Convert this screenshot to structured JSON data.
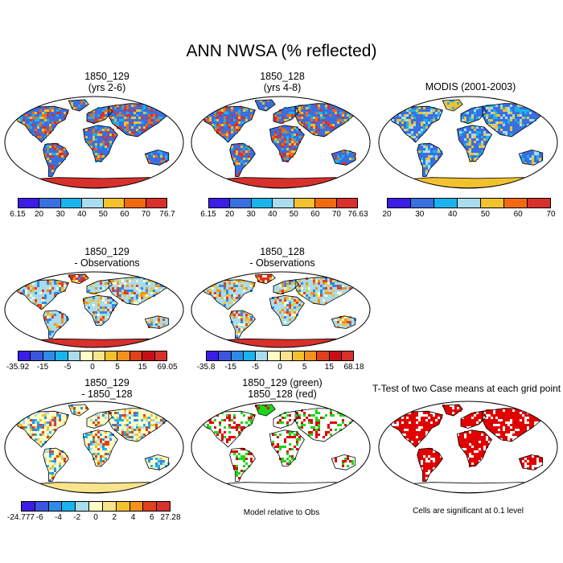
{
  "title": "ANN NWSA (% reflected)",
  "panels": {
    "p1": {
      "line1": "1850_129",
      "line2": "(yrs 2-6)"
    },
    "p2": {
      "line1": "1850_128",
      "line2": "(yrs 4-8)"
    },
    "p3": {
      "line1": "MODIS (2001-2003)"
    },
    "p4": {
      "line1": "1850_129",
      "line2": "- Observations"
    },
    "p5": {
      "line1": "1850_128",
      "line2": "- Observations"
    },
    "p6": {
      "line1": "1850_129",
      "line2": "- 1850_128"
    },
    "p7": {
      "line1": "1850_129 (green)",
      "line2": "1850_128 (red)"
    },
    "p8": {
      "line1": "T-Test of two Case means at each grid point"
    }
  },
  "colorbars": {
    "cb1": {
      "labels": [
        "6.15",
        "20",
        "30",
        "40",
        "50",
        "60",
        "70",
        "76.7"
      ],
      "colors": [
        "#3b1de6",
        "#3a6fe0",
        "#19b4ee",
        "#a9dced",
        "#f2c12e",
        "#f26a10",
        "#d8302c"
      ]
    },
    "cb2": {
      "labels": [
        "6.15",
        "20",
        "30",
        "40",
        "50",
        "60",
        "70",
        "76.63"
      ],
      "colors": [
        "#3b1de6",
        "#3a6fe0",
        "#19b4ee",
        "#a9dced",
        "#f2c12e",
        "#f26a10",
        "#d8302c"
      ]
    },
    "cb3": {
      "labels": [
        "20",
        "30",
        "40",
        "50",
        "60",
        "70"
      ],
      "colors": [
        "#3b1de6",
        "#3a6fe0",
        "#19b4ee",
        "#a9dced",
        "#f2c12e",
        "#f26a10",
        "#d8302c"
      ]
    },
    "cb4": {
      "labels": [
        "-35.92",
        "-15",
        "-5",
        "0",
        "5",
        "15",
        "69.05"
      ],
      "colors": [
        "#3b1de6",
        "#3a55e0",
        "#2f8ae8",
        "#19b4ee",
        "#a9dced",
        "#fffcc5",
        "#f7e48c",
        "#f2c12e",
        "#f2921c",
        "#e0401c",
        "#c80f16",
        "#d8302c"
      ]
    },
    "cb5": {
      "labels": [
        "-35.8",
        "-15",
        "-5",
        "0",
        "5",
        "15",
        "68.18"
      ],
      "colors": [
        "#3b1de6",
        "#3a55e0",
        "#2f8ae8",
        "#19b4ee",
        "#a9dced",
        "#fffcc5",
        "#f7e48c",
        "#f2c12e",
        "#f2921c",
        "#e0401c",
        "#c80f16",
        "#d8302c"
      ]
    },
    "cb6": {
      "labels": [
        "-24.777",
        "-6",
        "-4",
        "-2",
        "0",
        "2",
        "4",
        "6",
        "27.28"
      ],
      "colors": [
        "#3b1de6",
        "#3a55e0",
        "#2f8ae8",
        "#19b4ee",
        "#a9dced",
        "#fffcc5",
        "#f7e48c",
        "#f2c12e",
        "#f2921c",
        "#e0401c",
        "#d8302c"
      ]
    }
  },
  "notes": {
    "model_rel": "Model relative to Obs",
    "cells_sig": "Cells are significant at 0.1 level"
  },
  "palettes": {
    "p1": {
      "land": "#3a6fe0",
      "hot": [
        "#f2c12e",
        "#f26a10",
        "#d8302c",
        "#19b4ee"
      ],
      "ant": "#d8302c",
      "greenland": "#3a6fe0"
    },
    "p2": {
      "land": "#3a6fe0",
      "hot": [
        "#f2c12e",
        "#f26a10",
        "#d8302c",
        "#19b4ee"
      ],
      "ant": "#d8302c",
      "greenland": "#3a6fe0"
    },
    "p3": {
      "land": "#3a6fe0",
      "hot": [
        "#19b4ee",
        "#a9dced",
        "#f2c12e"
      ],
      "ant": "#f2c12e",
      "greenland": "#f2c12e"
    },
    "p4": {
      "land": "#a9dced",
      "hot": [
        "#f2c12e",
        "#f2921c",
        "#e0401c",
        "#fffcc5",
        "#2f8ae8"
      ],
      "ant": "#d8302c",
      "greenland": "#d8302c"
    },
    "p5": {
      "land": "#a9dced",
      "hot": [
        "#f2c12e",
        "#f2921c",
        "#e0401c",
        "#fffcc5",
        "#2f8ae8"
      ],
      "ant": "#d8302c",
      "greenland": "#d8302c"
    },
    "p6": {
      "land": "#fffcc5",
      "hot": [
        "#a9dced",
        "#19b4ee",
        "#f2c12e",
        "#e0401c",
        "#2f8ae8"
      ],
      "ant": "#f7e48c",
      "greenland": "#fffcc5"
    },
    "p7": {
      "land": "#ffffff",
      "hot": [
        "#18d818",
        "#e00000",
        "#18d818",
        "#e00000",
        "#ffffff"
      ],
      "ant": "#ffffff",
      "greenland": "#18d818"
    },
    "p8": {
      "land": "#e00000",
      "hot": [
        "#ffffff",
        "#e00000"
      ],
      "ant": "#ffffff",
      "greenland": "#e00000"
    }
  }
}
